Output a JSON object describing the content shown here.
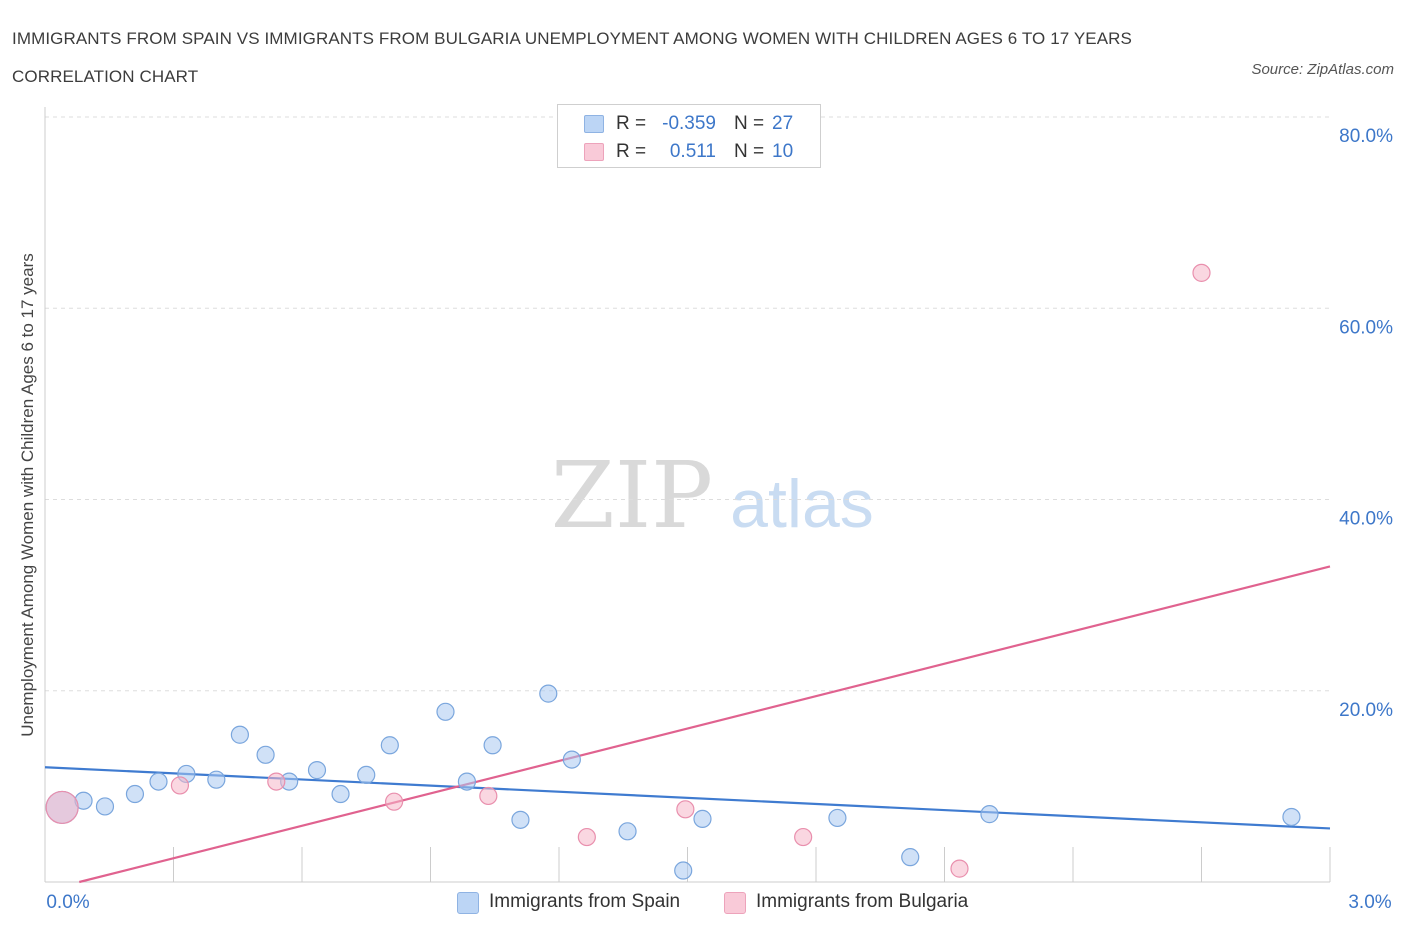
{
  "title": "IMMIGRANTS FROM SPAIN VS IMMIGRANTS FROM BULGARIA UNEMPLOYMENT AMONG WOMEN WITH CHILDREN AGES 6 TO 17 YEARS CORRELATION CHART",
  "source": "Source: ZipAtlas.com",
  "watermark": {
    "zip": "ZIP",
    "atlas": "atlas"
  },
  "legend": {
    "r_label": "R =",
    "n_label": "N =",
    "series": [
      {
        "r": "-0.359",
        "n": "27"
      },
      {
        "r": "0.511",
        "n": "10"
      }
    ]
  },
  "chart_data": {
    "type": "scatter",
    "title": "IMMIGRANTS FROM SPAIN VS IMMIGRANTS FROM BULGARIA UNEMPLOYMENT AMONG WOMEN WITH CHILDREN AGES 6 TO 17 YEARS CORRELATION CHART",
    "xlabel": "",
    "ylabel": "Unemployment Among Women with Children Ages 6 to 17 years",
    "xlim": [
      0,
      3
    ],
    "ylim": [
      0,
      80
    ],
    "x_tick_labels": [
      "0.0%",
      "3.0%"
    ],
    "y_ticks": [
      20,
      40,
      60,
      80
    ],
    "y_tick_labels": [
      "20.0%",
      "40.0%",
      "60.0%",
      "80.0%"
    ],
    "grid": true,
    "series": [
      {
        "name": "Immigrants from Spain",
        "color": "#a9c8f0",
        "line_color": "#3f7bd0",
        "points": [
          {
            "x": 0.04,
            "y": 7.8,
            "size": "large"
          },
          {
            "x": 0.09,
            "y": 8.5
          },
          {
            "x": 0.14,
            "y": 7.9
          },
          {
            "x": 0.21,
            "y": 9.2
          },
          {
            "x": 0.265,
            "y": 10.5
          },
          {
            "x": 0.33,
            "y": 11.3
          },
          {
            "x": 0.4,
            "y": 10.7
          },
          {
            "x": 0.455,
            "y": 15.4
          },
          {
            "x": 0.515,
            "y": 13.3
          },
          {
            "x": 0.57,
            "y": 10.5
          },
          {
            "x": 0.635,
            "y": 11.7
          },
          {
            "x": 0.69,
            "y": 9.2
          },
          {
            "x": 0.75,
            "y": 11.2
          },
          {
            "x": 0.805,
            "y": 14.3
          },
          {
            "x": 0.935,
            "y": 17.8
          },
          {
            "x": 0.985,
            "y": 10.5
          },
          {
            "x": 1.045,
            "y": 14.3
          },
          {
            "x": 1.11,
            "y": 6.5
          },
          {
            "x": 1.175,
            "y": 19.7
          },
          {
            "x": 1.23,
            "y": 12.8
          },
          {
            "x": 1.36,
            "y": 5.3
          },
          {
            "x": 1.49,
            "y": 1.2
          },
          {
            "x": 1.535,
            "y": 6.6
          },
          {
            "x": 1.85,
            "y": 6.7
          },
          {
            "x": 2.02,
            "y": 2.6
          },
          {
            "x": 2.205,
            "y": 7.1
          },
          {
            "x": 2.91,
            "y": 6.8
          }
        ],
        "trend": {
          "x": [
            0,
            3
          ],
          "y": [
            12.0,
            5.6
          ]
        }
      },
      {
        "name": "Immigrants from Bulgaria",
        "color": "#f5b6c8",
        "line_color": "#e0628f",
        "points": [
          {
            "x": 0.04,
            "y": 7.8,
            "size": "large"
          },
          {
            "x": 0.315,
            "y": 10.1
          },
          {
            "x": 0.54,
            "y": 10.5
          },
          {
            "x": 0.815,
            "y": 8.4
          },
          {
            "x": 1.035,
            "y": 9.0
          },
          {
            "x": 1.265,
            "y": 4.7
          },
          {
            "x": 1.495,
            "y": 7.6
          },
          {
            "x": 1.77,
            "y": 4.7
          },
          {
            "x": 2.135,
            "y": 1.4
          },
          {
            "x": 2.7,
            "y": 63.7
          }
        ],
        "trend": {
          "x": [
            0.08,
            3
          ],
          "y": [
            0.0,
            33.0
          ]
        }
      }
    ]
  }
}
